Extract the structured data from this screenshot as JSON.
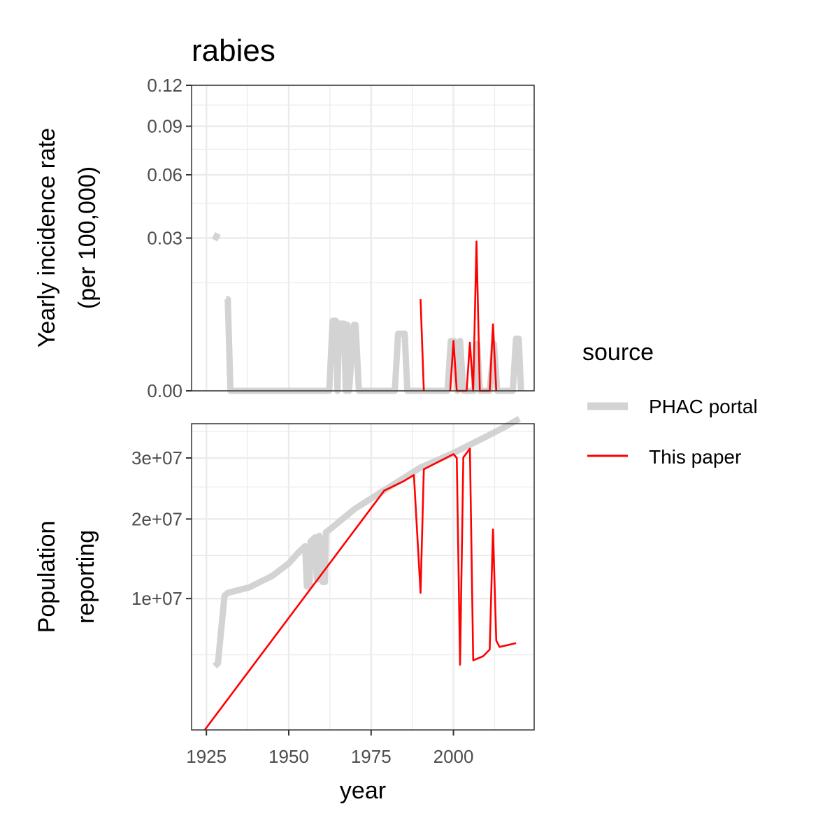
{
  "chart_data": {
    "type": "line",
    "title": "rabies",
    "xlabel": "year",
    "x_ticks": [
      1925,
      1950,
      1975,
      2000
    ],
    "xlim": [
      1920.5,
      2024.5
    ],
    "grid": true,
    "legend": {
      "title": "source",
      "position": "right",
      "entries": [
        "PHAC portal",
        "This paper"
      ]
    },
    "colors": {
      "PHAC portal": "#d3d3d3",
      "This paper": "#ff0000"
    },
    "panels": [
      {
        "id": "incidence",
        "ylabel_lines": [
          "Yearly incidence rate",
          "(per 100,000)"
        ],
        "y_scale": "sqrt",
        "ylim": [
          0,
          0.12
        ],
        "y_ticks": [
          0.0,
          0.03,
          0.06,
          0.09,
          0.12
        ],
        "y_tick_labels": [
          "0.00",
          "0.03",
          "0.06",
          "0.09",
          "0.12"
        ],
        "series": [
          {
            "name": "PHAC portal",
            "segments": [
              [
                [
                  1927.5,
                  0.0292
                ],
                [
                  1928.5,
                  0.0318
                ]
              ],
              [
                [
                  1931,
                  0.0108
                ],
                [
                  1931.5,
                  0.0108
                ],
                [
                  1932.3,
                  0.0
                ],
                [
                  1962.3,
                  0.0
                ],
                [
                  1963.3,
                  0.0063
                ],
                [
                  1964.3,
                  0.0063
                ],
                [
                  1964.8,
                  0.0
                ],
                [
                  1965.3,
                  0.0058
                ],
                [
                  1966.8,
                  0.0058
                ],
                [
                  1967.3,
                  0.0
                ],
                [
                  1967.8,
                  0.0056
                ],
                [
                  1968.3,
                  0.0
                ],
                [
                  1969.8,
                  0.0056
                ],
                [
                  1970.3,
                  0.0056
                ],
                [
                  1971.3,
                  0.0
                ],
                [
                  1982.2,
                  0.0
                ],
                [
                  1983.2,
                  0.0042
                ],
                [
                  1985.2,
                  0.0042
                ],
                [
                  1986.0,
                  0.0
                ],
                [
                  1998.2,
                  0.0
                ],
                [
                  1999.2,
                  0.0032
                ],
                [
                  2000.2,
                  0.0032
                ],
                [
                  2001.2,
                  0.0
                ],
                [
                  2002.0,
                  0.0032
                ],
                [
                  2003.0,
                  0.0
                ],
                [
                  2006.2,
                  0.0
                ],
                [
                  2007.2,
                  0.0028
                ],
                [
                  2008.0,
                  0.0
                ],
                [
                  2011.0,
                  0.0
                ],
                [
                  2012.3,
                  0.0028
                ],
                [
                  2013.3,
                  0.0
                ],
                [
                  2018.0,
                  0.0
                ],
                [
                  2019.0,
                  0.0035
                ],
                [
                  2019.8,
                  0.0035
                ],
                [
                  2020.5,
                  0.0
                ]
              ]
            ]
          },
          {
            "name": "This paper",
            "segments": [
              [
                [
                  1990,
                  0.0108
                ],
                [
                  1991,
                  0.0
                ]
              ],
              [
                [
                  1999,
                  0.0
                ],
                [
                  2000,
                  0.0032
                ],
                [
                  2001,
                  0.0
                ],
                [
                  2002,
                  0.0
                ],
                [
                  2003,
                  0.0
                ],
                [
                  2004,
                  0.0
                ],
                [
                  2005,
                  0.003
                ],
                [
                  2006,
                  0.0
                ],
                [
                  2007,
                  0.0287
                ],
                [
                  2008,
                  0.0
                ],
                [
                  2009,
                  0.0
                ],
                [
                  2010,
                  0.0
                ],
                [
                  2011,
                  0.0
                ],
                [
                  2012,
                  0.0057
                ],
                [
                  2013,
                  0.0
                ]
              ]
            ]
          }
        ]
      },
      {
        "id": "population",
        "ylabel_lines": [
          "Population",
          "reporting"
        ],
        "y_scale": "sqrt",
        "ylim": [
          1000000,
          36500000
        ],
        "y_ticks": [
          10000000,
          20000000,
          30000000
        ],
        "y_tick_labels": [
          "1e+07",
          "2e+07",
          "3e+07"
        ],
        "y_minor": [
          5000000,
          15000000,
          25000000,
          35000000
        ],
        "series": [
          {
            "name": "PHAC portal",
            "segments": [
              [
                [
                  1927.5,
                  4200000
                ],
                [
                  1928.5,
                  4400000
                ],
                [
                  1930.5,
                  10300000
                ],
                [
                  1931.5,
                  10600000
                ],
                [
                  1938,
                  11200000
                ],
                [
                  1945,
                  12500000
                ],
                [
                  1950,
                  14000000
                ],
                [
                  1953,
                  15400000
                ],
                [
                  1955,
                  16200000
                ],
                [
                  1955.5,
                  11300000
                ],
                [
                  1956.3,
                  11300000
                ],
                [
                  1956.6,
                  16800000
                ],
                [
                  1958,
                  17400000
                ],
                [
                  1958.5,
                  12200000
                ],
                [
                  1959,
                  12100000
                ],
                [
                  1959.3,
                  17600000
                ],
                [
                  1960.3,
                  11800000
                ],
                [
                  1961,
                  11800000
                ],
                [
                  1961.3,
                  18100000
                ],
                [
                  1963,
                  18700000
                ],
                [
                  1970,
                  21500000
                ],
                [
                  1980,
                  24800000
                ],
                [
                  1990,
                  28300000
                ],
                [
                  2000,
                  30900000
                ],
                [
                  2010,
                  34000000
                ],
                [
                  2016,
                  36000000
                ],
                [
                  2020,
                  37500000
                ]
              ]
            ]
          },
          {
            "name": "This paper",
            "segments": [
              [
                [
                  1924.5,
                  1000000
                ],
                [
                  1979,
                  24400000
                ],
                [
                  1985,
                  26000000
                ],
                [
                  1988,
                  27000000
                ],
                [
                  1990,
                  10600000
                ],
                [
                  1991,
                  28000000
                ],
                [
                  2000,
                  30700000
                ],
                [
                  2001,
                  30000000
                ],
                [
                  2002,
                  4300000
                ],
                [
                  2003,
                  30100000
                ],
                [
                  2005,
                  31700000
                ],
                [
                  2006,
                  4600000
                ],
                [
                  2009,
                  4900000
                ],
                [
                  2011,
                  5400000
                ],
                [
                  2012,
                  18500000
                ],
                [
                  2013,
                  6100000
                ],
                [
                  2014,
                  5600000
                ],
                [
                  2019,
                  5900000
                ]
              ]
            ]
          }
        ]
      }
    ]
  }
}
